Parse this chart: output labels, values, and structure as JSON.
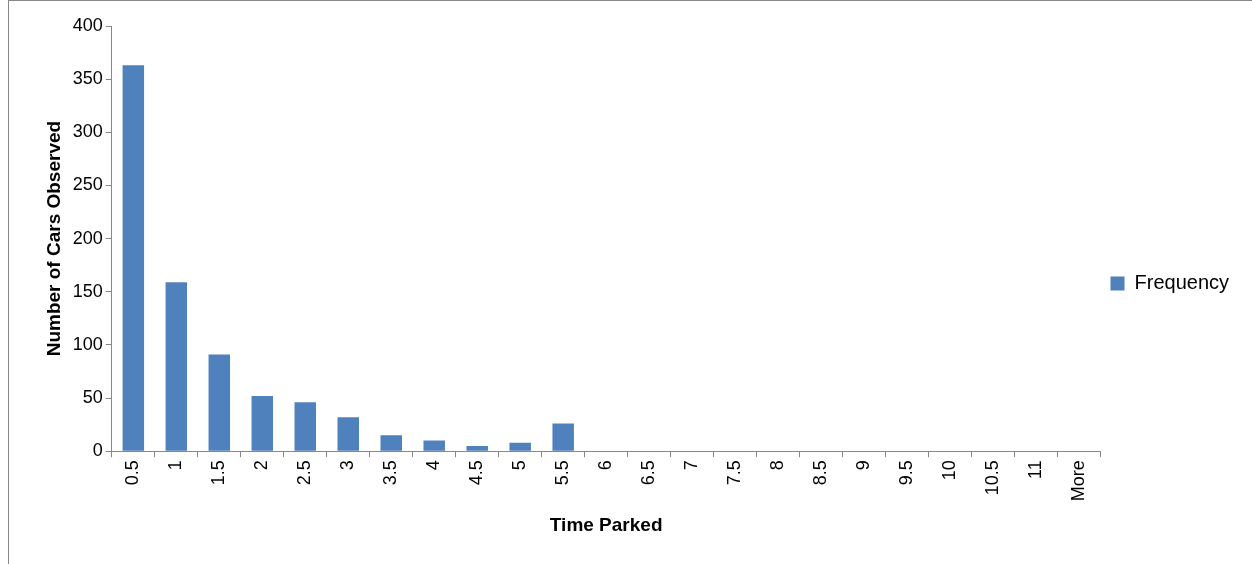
{
  "chart_data": {
    "type": "bar",
    "xlabel": "Time Parked",
    "ylabel": "Number of Cars Observed",
    "categories": [
      "0.5",
      "1",
      "1.5",
      "2",
      "2.5",
      "3",
      "3.5",
      "4",
      "4.5",
      "5",
      "5.5",
      "6",
      "6.5",
      "7",
      "7.5",
      "8",
      "8.5",
      "9",
      "9.5",
      "10",
      "10.5",
      "11",
      "More"
    ],
    "series": [
      {
        "name": "Frequency",
        "color": "#4f81bd",
        "values": [
          363,
          159,
          91,
          52,
          46,
          32,
          15,
          10,
          5,
          8,
          26,
          0,
          0,
          0,
          0,
          0,
          0,
          0,
          0,
          0,
          0,
          0,
          0
        ]
      }
    ],
    "ylim": [
      0,
      400
    ],
    "yticks": [
      0,
      50,
      100,
      150,
      200,
      250,
      300,
      350,
      400
    ],
    "grid": false,
    "legend": "right"
  }
}
